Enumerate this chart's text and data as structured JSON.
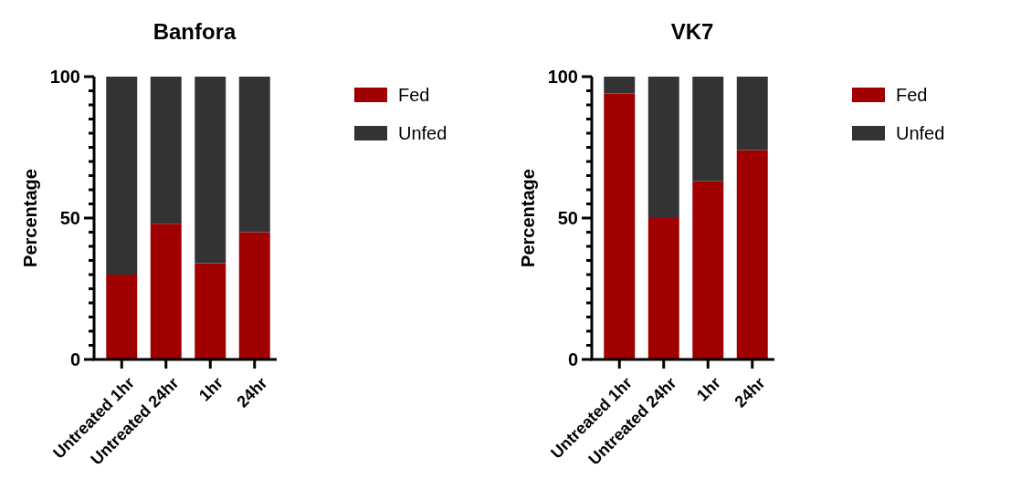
{
  "chart_data": [
    {
      "type": "bar",
      "title": "Banfora",
      "ylabel": "Percentage",
      "categories": [
        "Untreated 1hr",
        "Untreated 24hr",
        "1hr",
        "24hr"
      ],
      "stacked": true,
      "legend": "top right",
      "ylim": [
        0,
        100
      ],
      "yticks": [
        0,
        {
          "value": 5,
          "label": null
        },
        {
          "value": 10,
          "label": null
        },
        {
          "value": 15,
          "label": null
        },
        {
          "value": 20,
          "label": null
        },
        {
          "value": 25,
          "label": null
        },
        {
          "value": 30,
          "label": null
        },
        {
          "value": 35,
          "label": null
        },
        {
          "value": 40,
          "label": null
        },
        {
          "value": 45,
          "label": null
        },
        50,
        {
          "value": 55,
          "label": null
        },
        {
          "value": 60,
          "label": null
        },
        {
          "value": 65,
          "label": null
        },
        {
          "value": 70,
          "label": null
        },
        {
          "value": 75,
          "label": null
        },
        {
          "value": 80,
          "label": null
        },
        {
          "value": 85,
          "label": null
        },
        {
          "value": 90,
          "label": null
        },
        {
          "value": 95,
          "label": null
        },
        100
      ],
      "series": [
        {
          "name": "Fed",
          "color": "#a00000",
          "values": [
            30,
            48,
            34,
            45
          ]
        },
        {
          "name": "Unfed",
          "color": "#333333",
          "values": [
            70,
            52,
            66,
            55
          ]
        }
      ]
    },
    {
      "type": "bar",
      "title": "VK7",
      "ylabel": "Percentage",
      "categories": [
        "Untreated 1hr",
        "Untreated 24hr",
        "1hr",
        "24hr"
      ],
      "stacked": true,
      "legend": "top right",
      "ylim": [
        0,
        100
      ],
      "yticks": [
        0,
        {
          "value": 5,
          "label": null
        },
        {
          "value": 10,
          "label": null
        },
        {
          "value": 15,
          "label": null
        },
        {
          "value": 20,
          "label": null
        },
        {
          "value": 25,
          "label": null
        },
        {
          "value": 30,
          "label": null
        },
        {
          "value": 35,
          "label": null
        },
        {
          "value": 40,
          "label": null
        },
        {
          "value": 45,
          "label": null
        },
        50,
        {
          "value": 55,
          "label": null
        },
        {
          "value": 60,
          "label": null
        },
        {
          "value": 65,
          "label": null
        },
        {
          "value": 70,
          "label": null
        },
        {
          "value": 75,
          "label": null
        },
        {
          "value": 80,
          "label": null
        },
        {
          "value": 85,
          "label": null
        },
        {
          "value": 90,
          "label": null
        },
        {
          "value": 95,
          "label": null
        },
        100
      ],
      "series": [
        {
          "name": "Fed",
          "color": "#a00000",
          "values": [
            94,
            50,
            63,
            74
          ]
        },
        {
          "name": "Unfed",
          "color": "#333333",
          "values": [
            6,
            50,
            37,
            26
          ]
        }
      ]
    }
  ]
}
